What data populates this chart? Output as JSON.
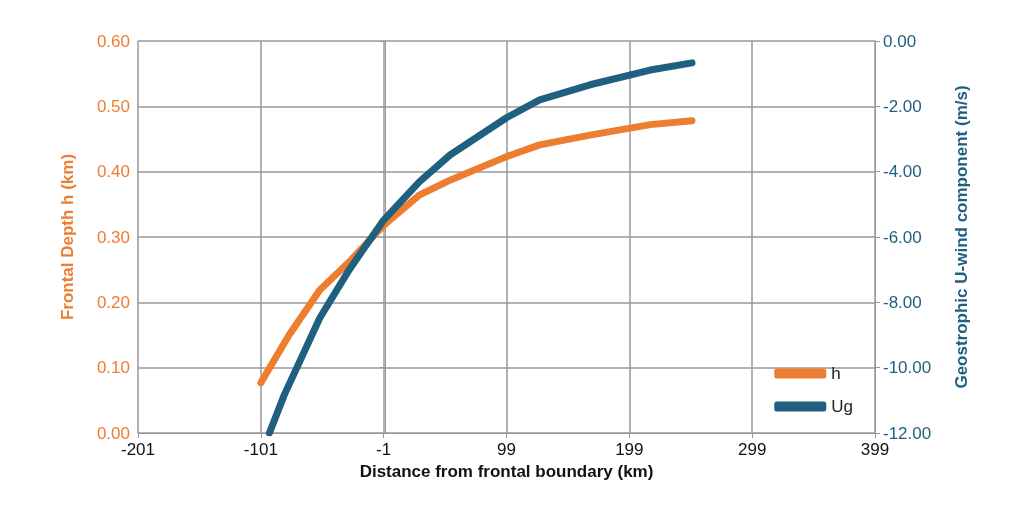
{
  "chart_data": {
    "type": "line",
    "xlabel": "Distance from frontal boundary (km)",
    "ylabel": "Frontal Depth h (km)",
    "y2label": "Geostrophic U-wind component (m/s)",
    "xlim": [
      -201,
      399
    ],
    "xticks": [
      -201,
      -101,
      -1,
      99,
      199,
      299,
      399
    ],
    "ylim": [
      0,
      0.6
    ],
    "yticks": [
      {
        "value": 0,
        "label": "0.00"
      },
      {
        "value": 0.1,
        "label": "0.10"
      },
      {
        "value": 0.2,
        "label": "0.20"
      },
      {
        "value": 0.3,
        "label": "0.30"
      },
      {
        "value": 0.4,
        "label": "0.40"
      },
      {
        "value": 0.5,
        "label": "0.50"
      },
      {
        "value": 0.6,
        "label": "0.60"
      }
    ],
    "y2lim": [
      -12,
      0
    ],
    "y2ticks": [
      {
        "value": -12,
        "label": "-12.00"
      },
      {
        "value": -10,
        "label": "-10.00"
      },
      {
        "value": -8,
        "label": "-8.00"
      },
      {
        "value": -6,
        "label": "-6.00"
      },
      {
        "value": -4,
        "label": "-4.00"
      },
      {
        "value": -2,
        "label": "-2.00"
      },
      {
        "value": 0,
        "label": "0.00"
      }
    ],
    "grid": true,
    "legend": "bottom right",
    "marker": "none",
    "line_style": "solid",
    "series": [
      {
        "name": "h",
        "color": "#ed7d31",
        "x": [
          -101,
          -78,
          -53,
          -29,
          -1,
          28,
          53,
          99,
          126,
          167,
          216,
          250
        ],
        "values": [
          0.077,
          0.15,
          0.219,
          0.262,
          0.318,
          0.364,
          0.387,
          0.423,
          0.441,
          0.456,
          0.472,
          0.478
        ]
      },
      {
        "name": "Ug",
        "color": "#1f5f7f",
        "axis": "y2",
        "x": [
          -94,
          -82,
          -53,
          -29,
          -1,
          28,
          53,
          99,
          126,
          167,
          216,
          250
        ],
        "values": [
          -12,
          -10.84,
          -8.48,
          -7.0,
          -5.48,
          -4.31,
          -3.49,
          -2.35,
          -1.8,
          -1.34,
          -0.89,
          -0.67
        ]
      }
    ]
  }
}
